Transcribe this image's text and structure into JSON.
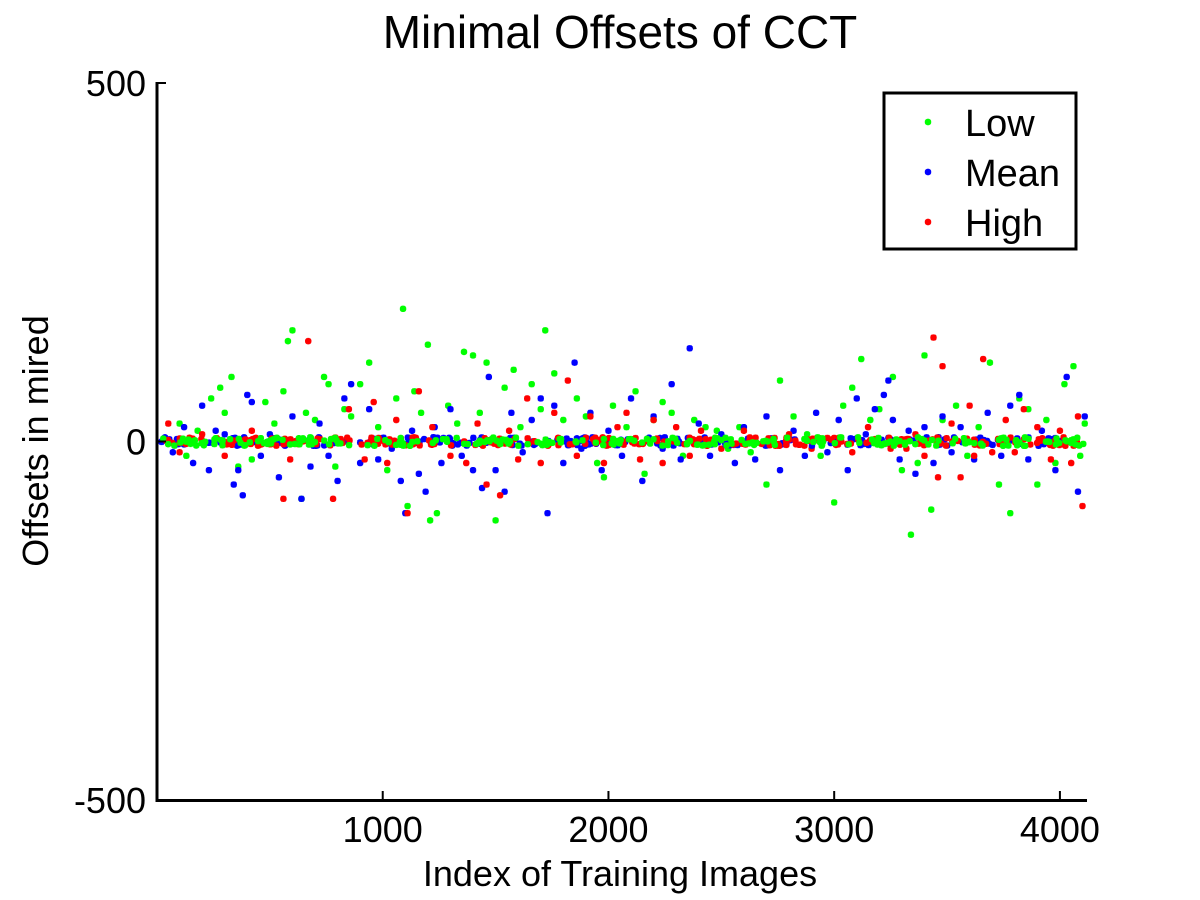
{
  "chart_data": {
    "type": "scatter",
    "title": "Minimal Offsets of CCT",
    "xlabel": "Index of Training Images",
    "ylabel": "Offsets in mired",
    "xlim": [
      0,
      4120
    ],
    "ylim": [
      -500,
      500
    ],
    "xticks": [
      1000,
      2000,
      3000,
      4000
    ],
    "yticks": [
      500,
      0,
      -500
    ],
    "grid": false,
    "legend_position": "top-right",
    "marker": "*",
    "series": [
      {
        "name": "Low",
        "color": "#00ff00",
        "points": [
          [
            100,
            25
          ],
          [
            130,
            -20
          ],
          [
            180,
            15
          ],
          [
            240,
            60
          ],
          [
            280,
            75
          ],
          [
            300,
            40
          ],
          [
            330,
            90
          ],
          [
            360,
            -35
          ],
          [
            420,
            -25
          ],
          [
            480,
            55
          ],
          [
            520,
            25
          ],
          [
            560,
            70
          ],
          [
            580,
            140
          ],
          [
            600,
            155
          ],
          [
            640,
            -80
          ],
          [
            660,
            40
          ],
          [
            700,
            30
          ],
          [
            740,
            90
          ],
          [
            760,
            80
          ],
          [
            790,
            -35
          ],
          [
            830,
            45
          ],
          [
            860,
            35
          ],
          [
            900,
            80
          ],
          [
            940,
            110
          ],
          [
            980,
            20
          ],
          [
            1020,
            -40
          ],
          [
            1060,
            60
          ],
          [
            1090,
            185
          ],
          [
            1110,
            -90
          ],
          [
            1140,
            70
          ],
          [
            1170,
            40
          ],
          [
            1200,
            135
          ],
          [
            1210,
            -110
          ],
          [
            1240,
            -100
          ],
          [
            1290,
            50
          ],
          [
            1330,
            25
          ],
          [
            1360,
            125
          ],
          [
            1400,
            120
          ],
          [
            1430,
            40
          ],
          [
            1460,
            110
          ],
          [
            1500,
            -110
          ],
          [
            1540,
            75
          ],
          [
            1580,
            100
          ],
          [
            1610,
            20
          ],
          [
            1660,
            80
          ],
          [
            1700,
            45
          ],
          [
            1720,
            155
          ],
          [
            1760,
            95
          ],
          [
            1800,
            30
          ],
          [
            1860,
            60
          ],
          [
            1900,
            35
          ],
          [
            1950,
            -30
          ],
          [
            1980,
            -50
          ],
          [
            2020,
            50
          ],
          [
            2080,
            20
          ],
          [
            2120,
            70
          ],
          [
            2160,
            -45
          ],
          [
            2200,
            30
          ],
          [
            2240,
            55
          ],
          [
            2280,
            40
          ],
          [
            2330,
            -20
          ],
          [
            2380,
            30
          ],
          [
            2430,
            20
          ],
          [
            2480,
            15
          ],
          [
            2530,
            -10
          ],
          [
            2580,
            20
          ],
          [
            2630,
            -15
          ],
          [
            2700,
            -60
          ],
          [
            2760,
            85
          ],
          [
            2820,
            35
          ],
          [
            2880,
            10
          ],
          [
            2940,
            -20
          ],
          [
            3000,
            -85
          ],
          [
            3040,
            50
          ],
          [
            3080,
            75
          ],
          [
            3120,
            115
          ],
          [
            3160,
            30
          ],
          [
            3200,
            45
          ],
          [
            3260,
            90
          ],
          [
            3300,
            -40
          ],
          [
            3340,
            -130
          ],
          [
            3370,
            -30
          ],
          [
            3400,
            120
          ],
          [
            3430,
            -95
          ],
          [
            3480,
            30
          ],
          [
            3540,
            50
          ],
          [
            3590,
            -20
          ],
          [
            3640,
            20
          ],
          [
            3690,
            110
          ],
          [
            3730,
            -60
          ],
          [
            3780,
            -100
          ],
          [
            3820,
            60
          ],
          [
            3860,
            45
          ],
          [
            3900,
            -60
          ],
          [
            3940,
            30
          ],
          [
            3980,
            -30
          ],
          [
            4020,
            80
          ],
          [
            4060,
            105
          ],
          [
            4090,
            -20
          ],
          [
            4110,
            25
          ]
        ]
      },
      {
        "name": "Mean",
        "color": "#0000ff",
        "points": [
          [
            70,
            -15
          ],
          [
            120,
            20
          ],
          [
            160,
            -30
          ],
          [
            200,
            50
          ],
          [
            230,
            -40
          ],
          [
            260,
            15
          ],
          [
            300,
            10
          ],
          [
            340,
            -60
          ],
          [
            360,
            -40
          ],
          [
            380,
            -75
          ],
          [
            400,
            65
          ],
          [
            420,
            55
          ],
          [
            460,
            -20
          ],
          [
            500,
            10
          ],
          [
            540,
            -50
          ],
          [
            600,
            35
          ],
          [
            640,
            -80
          ],
          [
            680,
            -35
          ],
          [
            720,
            25
          ],
          [
            760,
            -20
          ],
          [
            800,
            -55
          ],
          [
            830,
            60
          ],
          [
            860,
            80
          ],
          [
            900,
            -30
          ],
          [
            940,
            45
          ],
          [
            980,
            -25
          ],
          [
            1040,
            -10
          ],
          [
            1080,
            -55
          ],
          [
            1100,
            -100
          ],
          [
            1130,
            15
          ],
          [
            1160,
            -45
          ],
          [
            1190,
            -70
          ],
          [
            1230,
            20
          ],
          [
            1260,
            -30
          ],
          [
            1300,
            45
          ],
          [
            1350,
            -20
          ],
          [
            1400,
            -40
          ],
          [
            1440,
            -65
          ],
          [
            1470,
            90
          ],
          [
            1500,
            -40
          ],
          [
            1540,
            -70
          ],
          [
            1570,
            40
          ],
          [
            1620,
            -15
          ],
          [
            1660,
            30
          ],
          [
            1700,
            60
          ],
          [
            1730,
            -100
          ],
          [
            1760,
            50
          ],
          [
            1800,
            -30
          ],
          [
            1850,
            110
          ],
          [
            1880,
            -10
          ],
          [
            1920,
            40
          ],
          [
            1970,
            -40
          ],
          [
            2000,
            15
          ],
          [
            2060,
            -20
          ],
          [
            2100,
            60
          ],
          [
            2150,
            -55
          ],
          [
            2200,
            35
          ],
          [
            2240,
            -10
          ],
          [
            2280,
            80
          ],
          [
            2320,
            -25
          ],
          [
            2360,
            130
          ],
          [
            2400,
            25
          ],
          [
            2450,
            -20
          ],
          [
            2500,
            10
          ],
          [
            2560,
            -30
          ],
          [
            2600,
            20
          ],
          [
            2650,
            -25
          ],
          [
            2700,
            35
          ],
          [
            2760,
            -40
          ],
          [
            2820,
            15
          ],
          [
            2870,
            -20
          ],
          [
            2920,
            40
          ],
          [
            2970,
            -15
          ],
          [
            3020,
            30
          ],
          [
            3060,
            -40
          ],
          [
            3100,
            60
          ],
          [
            3140,
            10
          ],
          [
            3180,
            45
          ],
          [
            3220,
            65
          ],
          [
            3240,
            85
          ],
          [
            3260,
            30
          ],
          [
            3290,
            -25
          ],
          [
            3330,
            15
          ],
          [
            3360,
            -45
          ],
          [
            3400,
            20
          ],
          [
            3440,
            -30
          ],
          [
            3480,
            35
          ],
          [
            3520,
            -15
          ],
          [
            3560,
            20
          ],
          [
            3620,
            -25
          ],
          [
            3680,
            40
          ],
          [
            3740,
            -20
          ],
          [
            3780,
            50
          ],
          [
            3820,
            65
          ],
          [
            3860,
            -25
          ],
          [
            3920,
            15
          ],
          [
            3980,
            -40
          ],
          [
            4030,
            90
          ],
          [
            4080,
            -70
          ],
          [
            4110,
            35
          ]
        ]
      },
      {
        "name": "High",
        "color": "#ff0000",
        "points": [
          [
            50,
            25
          ],
          [
            100,
            -15
          ],
          [
            200,
            10
          ],
          [
            300,
            -20
          ],
          [
            420,
            15
          ],
          [
            560,
            -80
          ],
          [
            590,
            -25
          ],
          [
            670,
            140
          ],
          [
            720,
            5
          ],
          [
            780,
            -80
          ],
          [
            850,
            45
          ],
          [
            920,
            -25
          ],
          [
            960,
            55
          ],
          [
            1020,
            -30
          ],
          [
            1060,
            30
          ],
          [
            1110,
            -100
          ],
          [
            1160,
            70
          ],
          [
            1220,
            20
          ],
          [
            1300,
            -20
          ],
          [
            1370,
            -30
          ],
          [
            1420,
            25
          ],
          [
            1460,
            -60
          ],
          [
            1520,
            -75
          ],
          [
            1560,
            15
          ],
          [
            1600,
            -25
          ],
          [
            1640,
            60
          ],
          [
            1700,
            -30
          ],
          [
            1760,
            40
          ],
          [
            1820,
            85
          ],
          [
            1860,
            -20
          ],
          [
            1920,
            35
          ],
          [
            1980,
            -30
          ],
          [
            2040,
            20
          ],
          [
            2080,
            40
          ],
          [
            2140,
            -25
          ],
          [
            2200,
            30
          ],
          [
            2240,
            -30
          ],
          [
            2300,
            20
          ],
          [
            2360,
            -20
          ],
          [
            2410,
            15
          ],
          [
            2500,
            -10
          ],
          [
            2600,
            15
          ],
          [
            2700,
            -5
          ],
          [
            2800,
            10
          ],
          [
            2900,
            -10
          ],
          [
            3000,
            5
          ],
          [
            3080,
            -15
          ],
          [
            3150,
            20
          ],
          [
            3250,
            -10
          ],
          [
            3320,
            -10
          ],
          [
            3360,
            10
          ],
          [
            3400,
            -20
          ],
          [
            3440,
            145
          ],
          [
            3480,
            105
          ],
          [
            3520,
            25
          ],
          [
            3560,
            -50
          ],
          [
            3600,
            50
          ],
          [
            3660,
            115
          ],
          [
            3700,
            -15
          ],
          [
            3760,
            30
          ],
          [
            3800,
            -15
          ],
          [
            3840,
            45
          ],
          [
            3900,
            20
          ],
          [
            3960,
            -25
          ],
          [
            4000,
            15
          ],
          [
            4050,
            -30
          ],
          [
            4080,
            35
          ],
          [
            4100,
            -90
          ],
          [
            3620,
            -20
          ],
          [
            3460,
            -50
          ]
        ]
      }
    ]
  }
}
